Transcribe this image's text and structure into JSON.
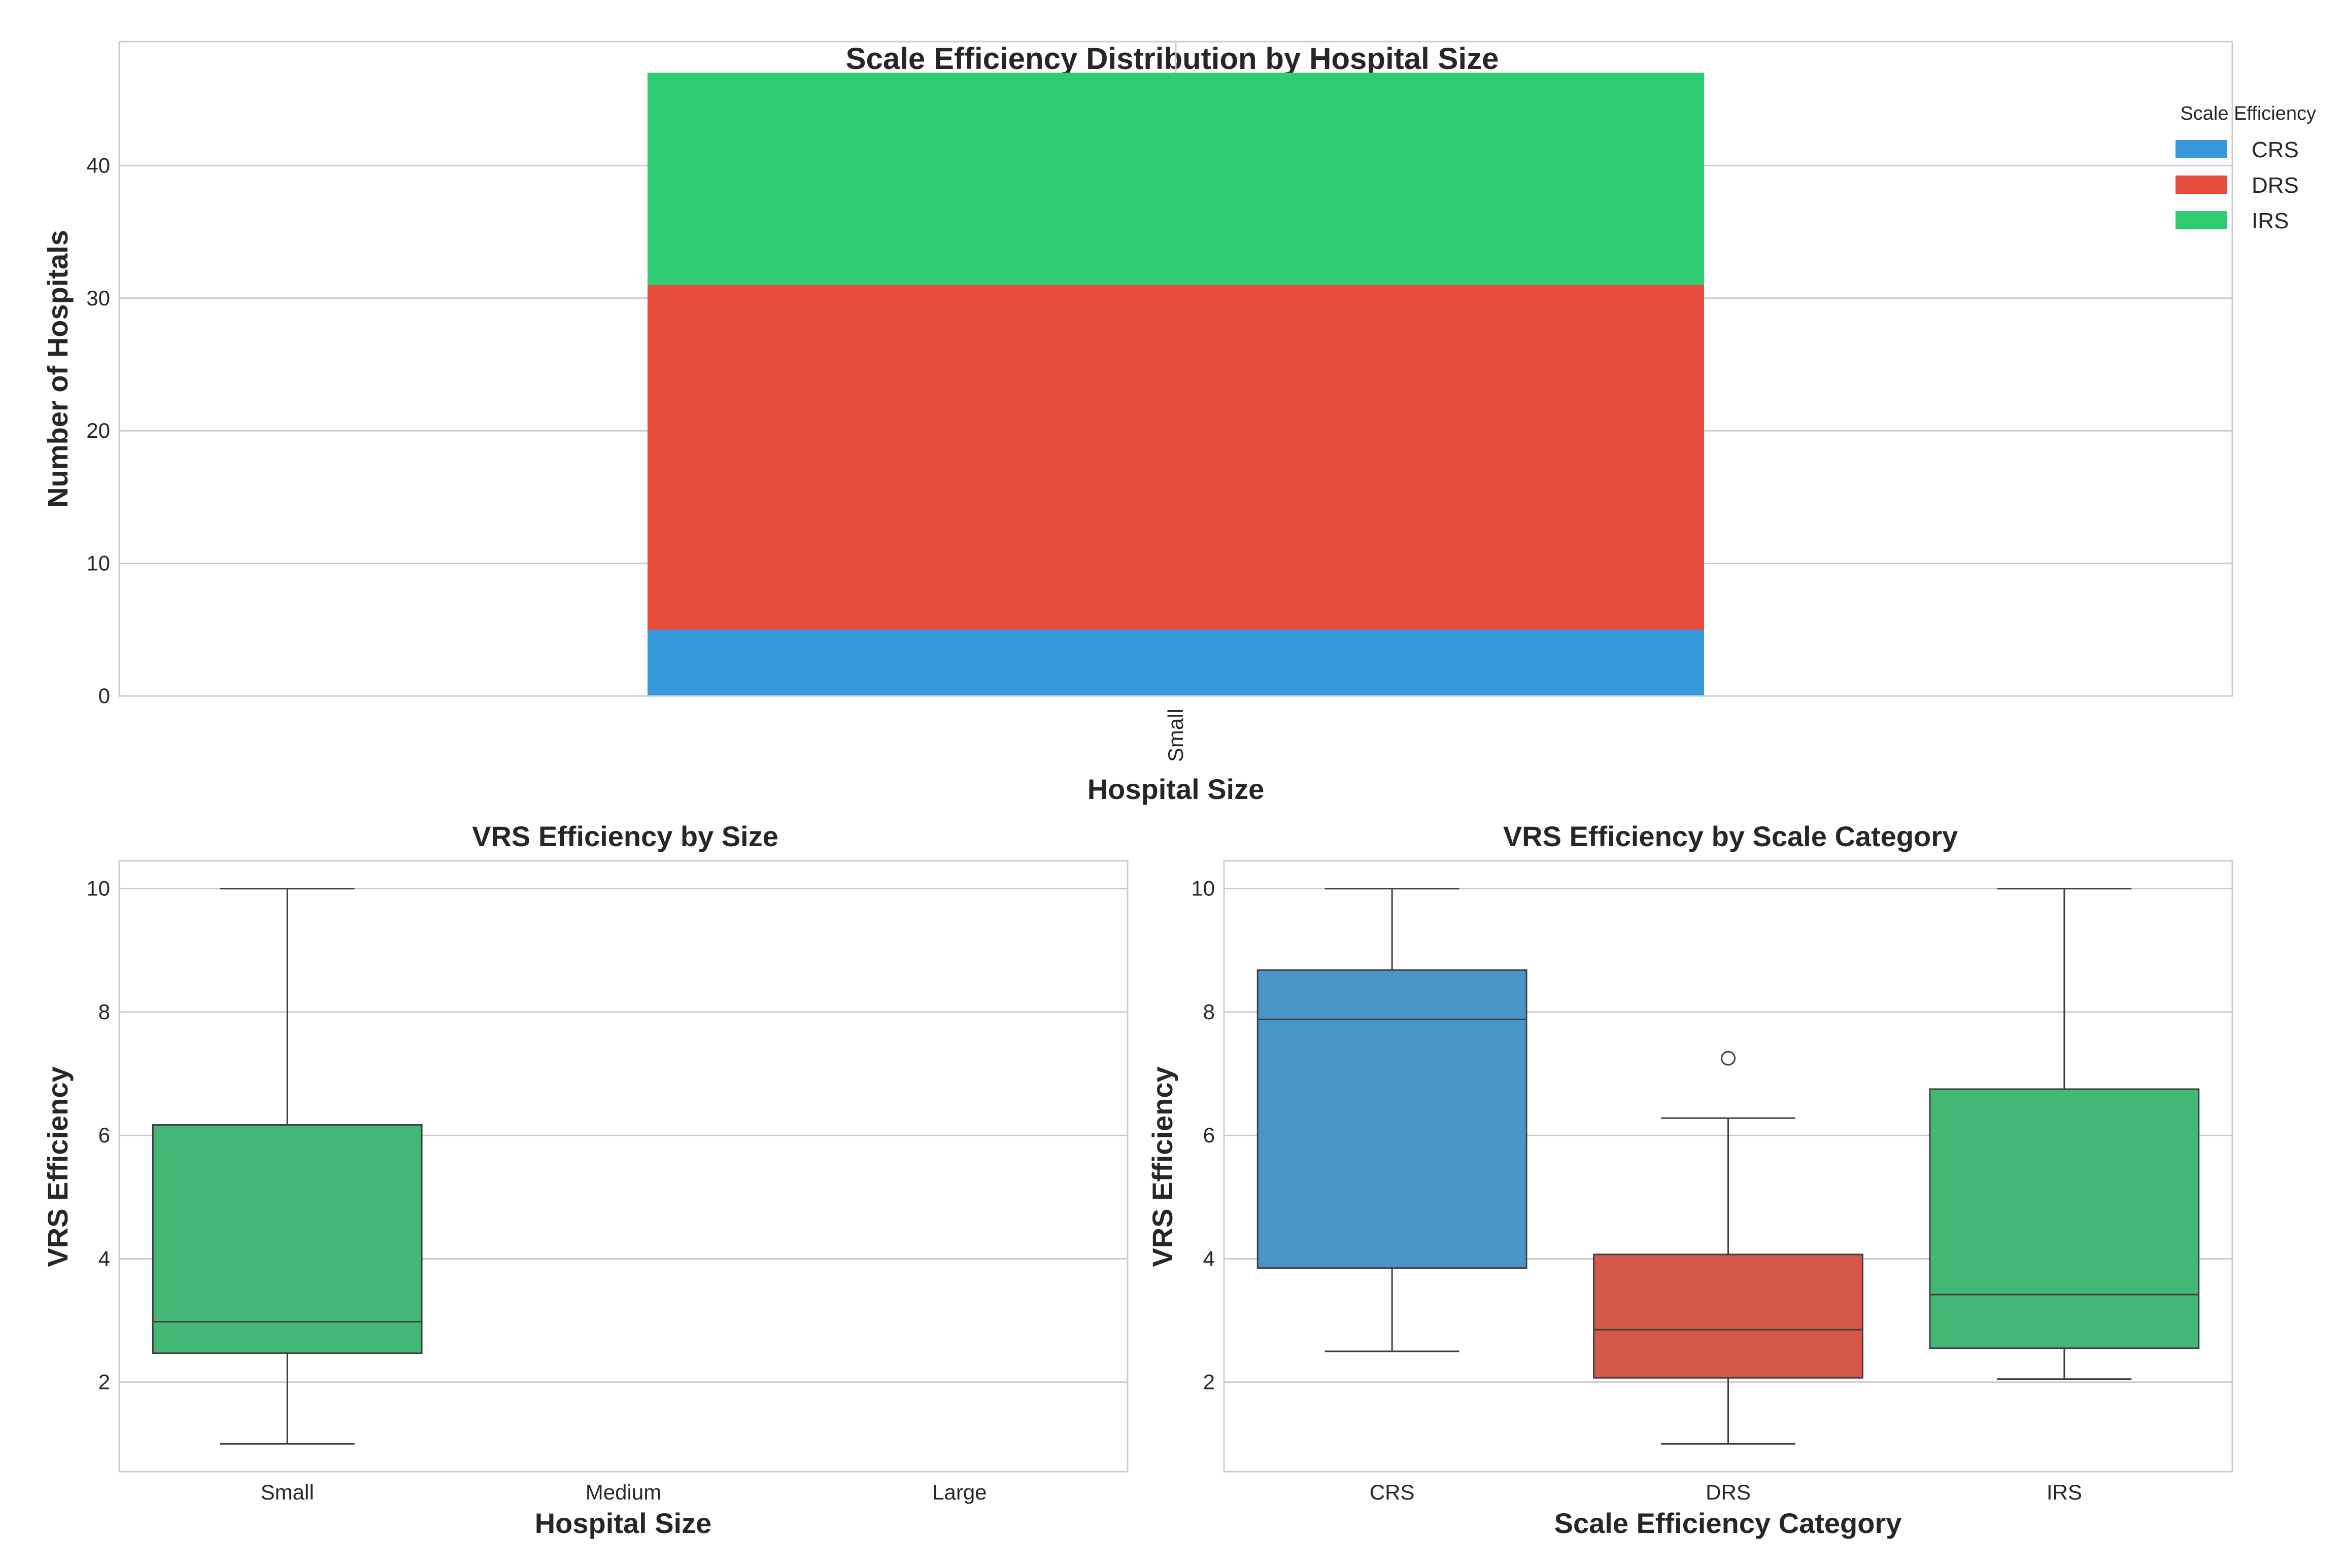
{
  "colors": {
    "CRS": "#3498db",
    "DRS": "#e74c3c",
    "IRS": "#2ecc71",
    "CRS_box": "#4895c8",
    "DRS_box": "#d5574a",
    "IRS_box": "#43b874",
    "grid": "#cccccc",
    "frame": "#cccccc",
    "line": "#3f3f3f"
  },
  "chart_data": [
    {
      "type": "bar",
      "stacked": true,
      "title": "Scale Efficiency Distribution by Hospital Size",
      "xlabel": "Hospital Size",
      "ylabel": "Number of Hospitals",
      "categories": [
        "Small"
      ],
      "series": [
        {
          "name": "CRS",
          "values": [
            5
          ]
        },
        {
          "name": "DRS",
          "values": [
            26
          ]
        },
        {
          "name": "IRS",
          "values": [
            16
          ]
        }
      ],
      "yticks": [
        0,
        10,
        20,
        30,
        40
      ],
      "ylim": [
        0,
        49.35
      ],
      "grid": true,
      "legend": {
        "title": "Scale Efficiency",
        "placement": "top-right"
      }
    },
    {
      "type": "box",
      "title": "VRS Efficiency by Size",
      "xlabel": "Hospital Size",
      "ylabel": "VRS Efficiency",
      "categories": [
        "Small",
        "Medium",
        "Large"
      ],
      "boxes": [
        {
          "category": "Small",
          "min": 1.0,
          "q1": 2.47,
          "median": 2.98,
          "q3": 6.17,
          "max": 10.0,
          "outliers": [],
          "color_key": "IRS_box"
        }
      ],
      "yticks": [
        2,
        4,
        6,
        8,
        10
      ],
      "ylim": [
        0.55,
        10.45
      ],
      "grid": true
    },
    {
      "type": "box",
      "title": "VRS Efficiency by Scale Category",
      "xlabel": "Scale Efficiency Category",
      "ylabel": "VRS Efficiency",
      "categories": [
        "CRS",
        "DRS",
        "IRS"
      ],
      "boxes": [
        {
          "category": "CRS",
          "min": 2.5,
          "q1": 3.85,
          "median": 7.88,
          "q3": 8.68,
          "max": 10.0,
          "outliers": [],
          "color_key": "CRS_box"
        },
        {
          "category": "DRS",
          "min": 1.0,
          "q1": 2.07,
          "median": 2.85,
          "q3": 4.07,
          "max": 6.28,
          "outliers": [
            7.25
          ],
          "color_key": "DRS_box"
        },
        {
          "category": "IRS",
          "min": 2.05,
          "q1": 2.55,
          "median": 3.42,
          "q3": 6.75,
          "max": 10.0,
          "outliers": [],
          "color_key": "IRS_box"
        }
      ],
      "yticks": [
        2,
        4,
        6,
        8,
        10
      ],
      "ylim": [
        0.55,
        10.45
      ],
      "grid": true
    }
  ]
}
